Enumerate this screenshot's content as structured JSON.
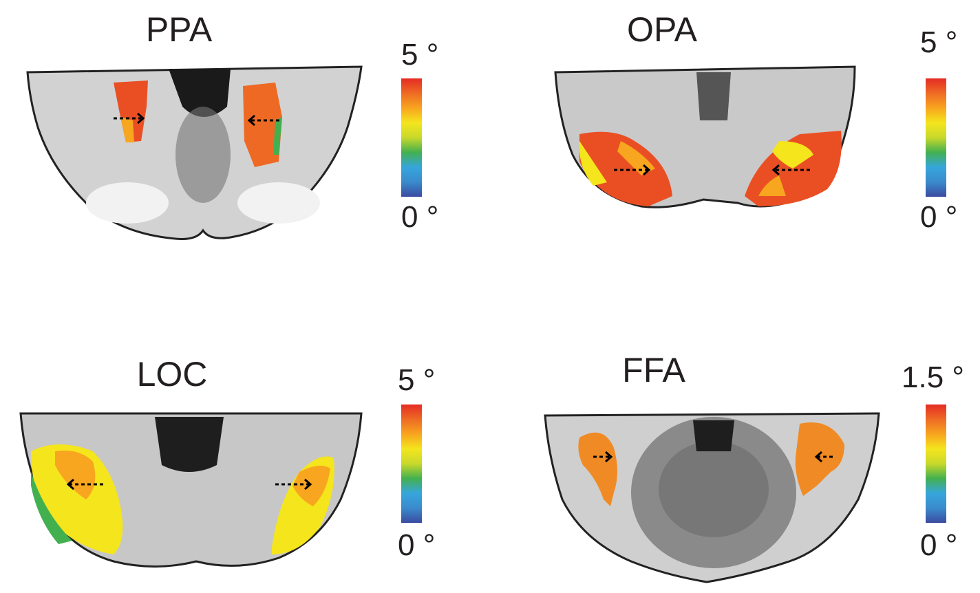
{
  "panels": [
    {
      "id": "ppa",
      "title": "PPA",
      "scale_max": "5 °",
      "scale_min": "0 °",
      "peak": "#e8301e",
      "arrows": "inward"
    },
    {
      "id": "opa",
      "title": "OPA",
      "scale_max": "5 °",
      "scale_min": "0 °",
      "peak": "#e8301e",
      "arrows": "inward"
    },
    {
      "id": "loc",
      "title": "LOC",
      "scale_max": "5 °",
      "scale_min": "0 °",
      "peak": "#f2c21e",
      "arrows": "outward"
    },
    {
      "id": "ffa",
      "title": "FFA",
      "scale_max": "1.5 °",
      "scale_min": "0 °",
      "peak": "#f08a24",
      "arrows": "inward"
    }
  ],
  "colormap": [
    "#3b4aa0",
    "#3f67b3",
    "#3a8bcb",
    "#36a6dc",
    "#2fb0c8",
    "#43b04f",
    "#6cbd45",
    "#c8d92b",
    "#f4e51d",
    "#f7c41f",
    "#f8a51f",
    "#f38822",
    "#ee6b24",
    "#e94c24",
    "#e42c24"
  ]
}
